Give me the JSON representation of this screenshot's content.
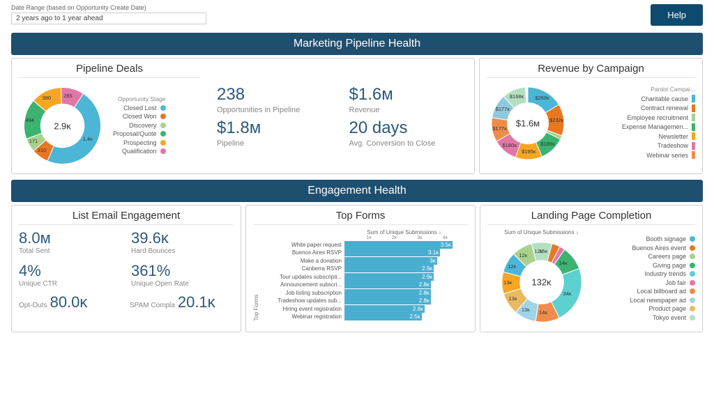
{
  "header": {
    "date_label": "Date Range (based on Opportunity Create Date)",
    "date_value": "2 years ago to 1 year ahead",
    "help": "Help"
  },
  "banners": {
    "pipeline": "Marketing Pipeline Health",
    "engagement": "Engagement Health"
  },
  "pipeline_deals": {
    "title": "Pipeline Deals",
    "center": "2.9ᴋ",
    "legend_title": "Opportunity Stage",
    "segments": [
      {
        "label": "Closed Lost",
        "color": "#4bb6d6",
        "value": "1.4ᴋ",
        "angle": 173
      },
      {
        "label": "Closed Won",
        "color": "#e87722",
        "value": "210",
        "angle": 26
      },
      {
        "label": "Discovery",
        "color": "#a8d18d",
        "value": "171",
        "angle": 21
      },
      {
        "label": "Proposal/Quote",
        "color": "#3cb371",
        "value": "494",
        "angle": 61
      },
      {
        "label": "Prospecting",
        "color": "#f5a623",
        "value": "380",
        "angle": 47
      },
      {
        "label": "Qualification",
        "color": "#e376a8",
        "value": "285",
        "angle": 35
      }
    ],
    "metrics": [
      {
        "value": "238",
        "label": "Opportunities in Pipeline"
      },
      {
        "value": "$1.6ᴍ",
        "label": "Revenue"
      },
      {
        "value": "$1.8ᴍ",
        "label": "Pipeline"
      },
      {
        "value": "20 days",
        "label": "Avg. Conversion to Close"
      }
    ]
  },
  "revenue_campaign": {
    "title": "Revenue by Campaign",
    "center": "$1.6ᴍ",
    "legend_title": "Pardot Campai...",
    "segments": [
      {
        "label": "Charitable cause",
        "color": "#4bb6d6",
        "value": "$269ᴋ",
        "angle": 59
      },
      {
        "label": "Contract renewal",
        "color": "#e87722",
        "value": "$232ᴋ",
        "angle": 51
      },
      {
        "label": "Employee recruitment",
        "color": "#a8d18d",
        "value": "",
        "angle": 6
      },
      {
        "label": "Expense Managemen...",
        "color": "#3cb371",
        "value": "$189ᴋ",
        "angle": 41
      },
      {
        "label": "Newsletter",
        "color": "#f5a623",
        "value": "$195ᴋ",
        "angle": 43
      },
      {
        "label": "Tradeshow",
        "color": "#e376a8",
        "value": "$180ᴋ",
        "angle": 40
      },
      {
        "label": "Webinar series",
        "color": "#f08c4b",
        "value": "$177ᴋ",
        "angle": 39
      }
    ],
    "extra_segments": [
      {
        "color": "#8fc9e0",
        "value": "$177ᴋ",
        "angle": 39
      },
      {
        "color": "#b3e0c3",
        "value": "$168ᴋ",
        "angle": 38
      }
    ]
  },
  "email_engagement": {
    "title": "List Email Engagement",
    "items": [
      {
        "value": "8.0ᴍ",
        "label": "Total Sent"
      },
      {
        "value": "39.6ᴋ",
        "label": "Hard Bounces"
      },
      {
        "value": "4%",
        "label": "Unique CTR"
      },
      {
        "value": "361%",
        "label": "Unique Open Rate"
      }
    ],
    "bottom": [
      {
        "label": "Opt-Outs",
        "value": "80.0ᴋ"
      },
      {
        "label": "SPAM Compla",
        "value": "20.1ᴋ"
      }
    ]
  },
  "top_forms": {
    "title": "Top Forms",
    "axis_title": "Sum of Unique Submissions ↓",
    "side_label": "Top Forms",
    "max": 4000,
    "ticks": [
      "",
      "1ᴋ",
      "2ᴋ",
      "3ᴋ",
      "4ᴋ"
    ],
    "rows": [
      {
        "label": "White paper request",
        "value": 3500,
        "display": "3.5ᴋ"
      },
      {
        "label": "Buenos Aires RSVP",
        "value": 3100,
        "display": "3.1ᴋ"
      },
      {
        "label": "Make a donation",
        "value": 3000,
        "display": "3ᴋ"
      },
      {
        "label": "Canberra RSVP",
        "value": 2900,
        "display": "2.9ᴋ"
      },
      {
        "label": "Tour updates subscripti...",
        "value": 2900,
        "display": "2.9ᴋ"
      },
      {
        "label": "Announcement subscri...",
        "value": 2800,
        "display": "2.8ᴋ"
      },
      {
        "label": "Job listing subscription",
        "value": 2800,
        "display": "2.8ᴋ"
      },
      {
        "label": "Tradeshow updates sub...",
        "value": 2800,
        "display": "2.8ᴋ"
      },
      {
        "label": "Hiring event registration",
        "value": 2600,
        "display": "2.6ᴋ"
      },
      {
        "label": "Webinar registration",
        "value": 2500,
        "display": "2.5ᴋ"
      }
    ]
  },
  "landing": {
    "title": "Landing Page Completion",
    "subtitle": "Sum of Unique Submissions ↓",
    "center": "132ᴋ",
    "legend": [
      {
        "label": "Booth signage",
        "color": "#4bb6d6"
      },
      {
        "label": "Buenos Aires event",
        "color": "#e87722"
      },
      {
        "label": "Careers page",
        "color": "#a8d18d"
      },
      {
        "label": "Giving page",
        "color": "#3cb371"
      },
      {
        "label": "Industry trends",
        "color": "#5dd0d0"
      },
      {
        "label": "Job fair",
        "color": "#e376a8"
      },
      {
        "label": "Local billboard ad",
        "color": "#f08c4b"
      },
      {
        "label": "Local newspaper ad",
        "color": "#9fd4e8"
      },
      {
        "label": "Product page",
        "color": "#e8b960"
      },
      {
        "label": "Tokyo event",
        "color": "#b3e0c3"
      }
    ],
    "segments": [
      {
        "color": "#e87722",
        "value": "15ᴋ",
        "angle": 37
      },
      {
        "color": "#e376a8",
        "value": "",
        "angle": 8
      },
      {
        "color": "#3cb371",
        "value": "14ᴋ",
        "angle": 35
      },
      {
        "color": "#5dd0d0",
        "value": "34ᴋ",
        "angle": 84
      },
      {
        "color": "#f08c4b",
        "value": "14ᴋ",
        "angle": 35
      },
      {
        "color": "#9fd4e8",
        "value": "13ᴋ",
        "angle": 32
      },
      {
        "color": "#e8b960",
        "value": "13ᴋ",
        "angle": 32
      },
      {
        "color": "#f5a623",
        "value": "13ᴋ",
        "angle": 32
      },
      {
        "color": "#4bb6d6",
        "value": "12ᴋ",
        "angle": 30
      },
      {
        "color": "#a8d18d",
        "value": "12ᴋ",
        "angle": 30
      },
      {
        "color": "#b3e0c3",
        "value": "12ᴋ",
        "angle": 30
      }
    ]
  }
}
